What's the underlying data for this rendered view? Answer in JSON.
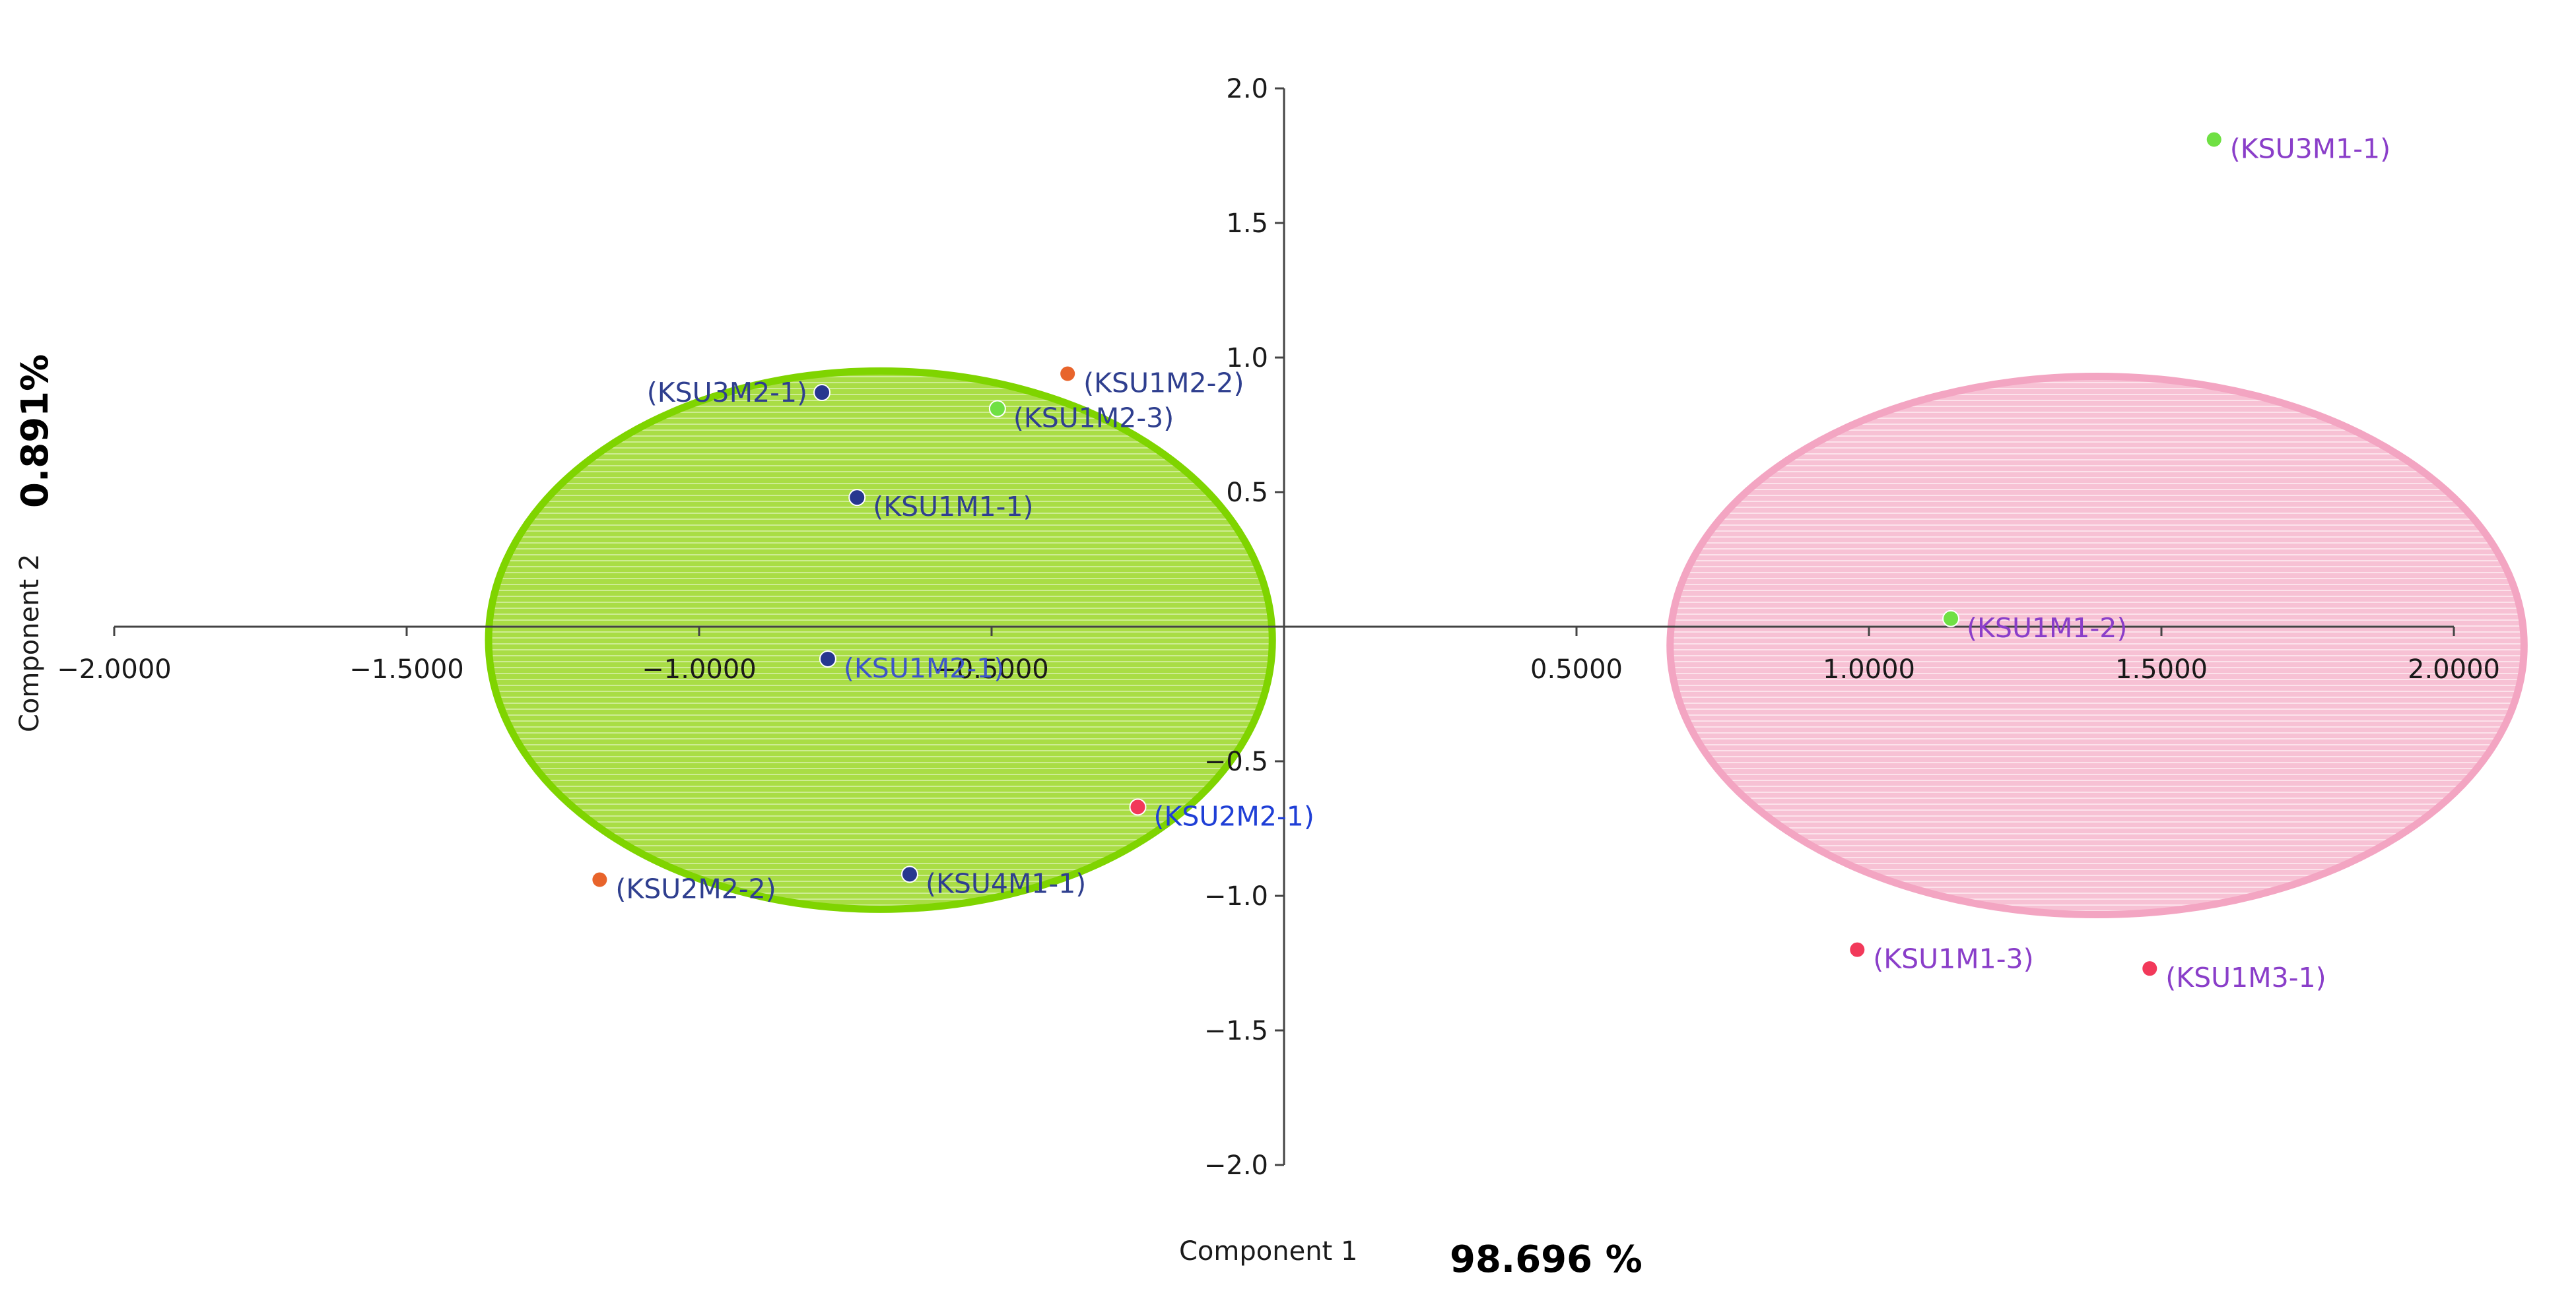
{
  "chart_data": {
    "type": "scatter",
    "title": "",
    "xlabel": "Component 1",
    "ylabel": "Component 2",
    "x_variance_label": "98.696 %",
    "y_variance_label": "0.891%",
    "xlim": [
      -2.0,
      2.0
    ],
    "ylim": [
      -2.0,
      2.0
    ],
    "x_ticks": [
      {
        "value": -2.0,
        "label": "−2.0000"
      },
      {
        "value": -1.5,
        "label": "−1.5000"
      },
      {
        "value": -1.0,
        "label": "−1.0000"
      },
      {
        "value": -0.5,
        "label": "−0.5000"
      },
      {
        "value": 0.5,
        "label": "0.5000"
      },
      {
        "value": 1.0,
        "label": "1.0000"
      },
      {
        "value": 1.5,
        "label": "1.5000"
      },
      {
        "value": 2.0,
        "label": "2.0000"
      }
    ],
    "y_ticks": [
      {
        "value": 2.0,
        "label": "2.0"
      },
      {
        "value": 1.5,
        "label": "1.5"
      },
      {
        "value": 1.0,
        "label": "1.0"
      },
      {
        "value": 0.5,
        "label": "0.5"
      },
      {
        "value": -0.5,
        "label": "−0.5"
      },
      {
        "value": -1.0,
        "label": "−1.0"
      },
      {
        "value": -1.5,
        "label": "−1.5"
      },
      {
        "value": -2.0,
        "label": "−2.0"
      }
    ],
    "groups": [
      {
        "center": [
          -0.69,
          -0.05
        ],
        "radius": [
          0.67,
          1.0
        ],
        "fill": "#a6dc3c",
        "stroke": "#7fd400"
      },
      {
        "center": [
          1.39,
          -0.07
        ],
        "radius": [
          0.73,
          1.0
        ],
        "fill": "#f8c3d6",
        "stroke": "#f3a5c2"
      }
    ],
    "points": [
      {
        "label": "(KSU3M2-1)",
        "x": -0.79,
        "y": 0.87,
        "color": "#27378f",
        "label_color": "#2f3f8f"
      },
      {
        "label": "(KSU1M2-2)",
        "x": -0.37,
        "y": 0.94,
        "color": "#e8642b",
        "label_color": "#2f3f8f"
      },
      {
        "label": "(KSU1M2-3)",
        "x": -0.49,
        "y": 0.81,
        "color": "#6fe043",
        "label_color": "#2f3f8f"
      },
      {
        "label": "(KSU1M1-1)",
        "x": -0.73,
        "y": 0.48,
        "color": "#27378f",
        "label_color": "#2f3f8f"
      },
      {
        "label": "(KSU1M2-1)",
        "x": -0.78,
        "y": -0.12,
        "color": "#27378f",
        "label_color": "#3d55c8"
      },
      {
        "label": "(KSU2M2-1)",
        "x": -0.25,
        "y": -0.67,
        "color": "#f2395a",
        "label_color": "#1f3fd6"
      },
      {
        "label": "(KSU2M2-2)",
        "x": -1.17,
        "y": -0.94,
        "color": "#e8642b",
        "label_color": "#2f3f8f"
      },
      {
        "label": "(KSU4M1-1)",
        "x": -0.64,
        "y": -0.92,
        "color": "#27378f",
        "label_color": "#2f3f8f"
      },
      {
        "label": "(KSU3M1-1)",
        "x": 1.59,
        "y": 1.81,
        "color": "#6fe043",
        "label_color": "#8a3ec9"
      },
      {
        "label": "(KSU1M1-2)",
        "x": 1.14,
        "y": 0.03,
        "color": "#6fe043",
        "label_color": "#8a3ec9"
      },
      {
        "label": "(KSU1M1-3)",
        "x": 0.98,
        "y": -1.2,
        "color": "#f2395a",
        "label_color": "#8a3ec9"
      },
      {
        "label": "(KSU1M3-1)",
        "x": 1.48,
        "y": -1.27,
        "color": "#f2395a",
        "label_color": "#8a3ec9"
      }
    ],
    "grid": false,
    "legend": "none"
  }
}
